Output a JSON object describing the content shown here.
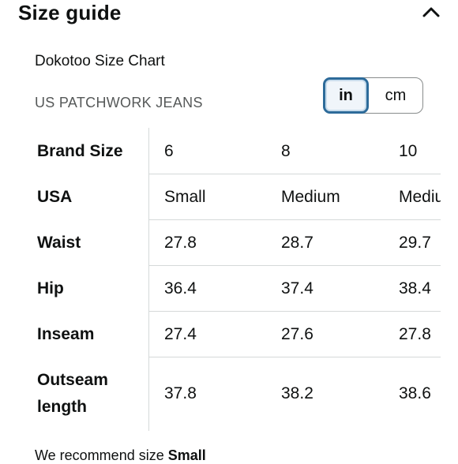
{
  "header": {
    "title": "Size guide",
    "collapse_icon": "chevron-up-icon"
  },
  "chart": {
    "name": "Dokotoo Size Chart",
    "product_type": "US  PATCHWORK JEANS"
  },
  "units": {
    "options": [
      "in",
      "cm"
    ],
    "selected": "in"
  },
  "table": {
    "rows": [
      {
        "label": "Brand Size",
        "cells": [
          "6",
          "8",
          "10"
        ]
      },
      {
        "label": "USA",
        "cells": [
          "Small",
          "Medium",
          "Medium"
        ]
      },
      {
        "label": "Waist",
        "cells": [
          "27.8",
          "28.7",
          "29.7"
        ]
      },
      {
        "label": "Hip",
        "cells": [
          "36.4",
          "37.4",
          "38.4"
        ]
      },
      {
        "label": "Inseam",
        "cells": [
          "27.4",
          "27.6",
          "27.8"
        ]
      },
      {
        "label": "Outseam length",
        "cells": [
          "37.8",
          "38.2",
          "38.6"
        ]
      }
    ]
  },
  "recommendation": {
    "prefix": "We recommend size ",
    "size": "Small"
  }
}
